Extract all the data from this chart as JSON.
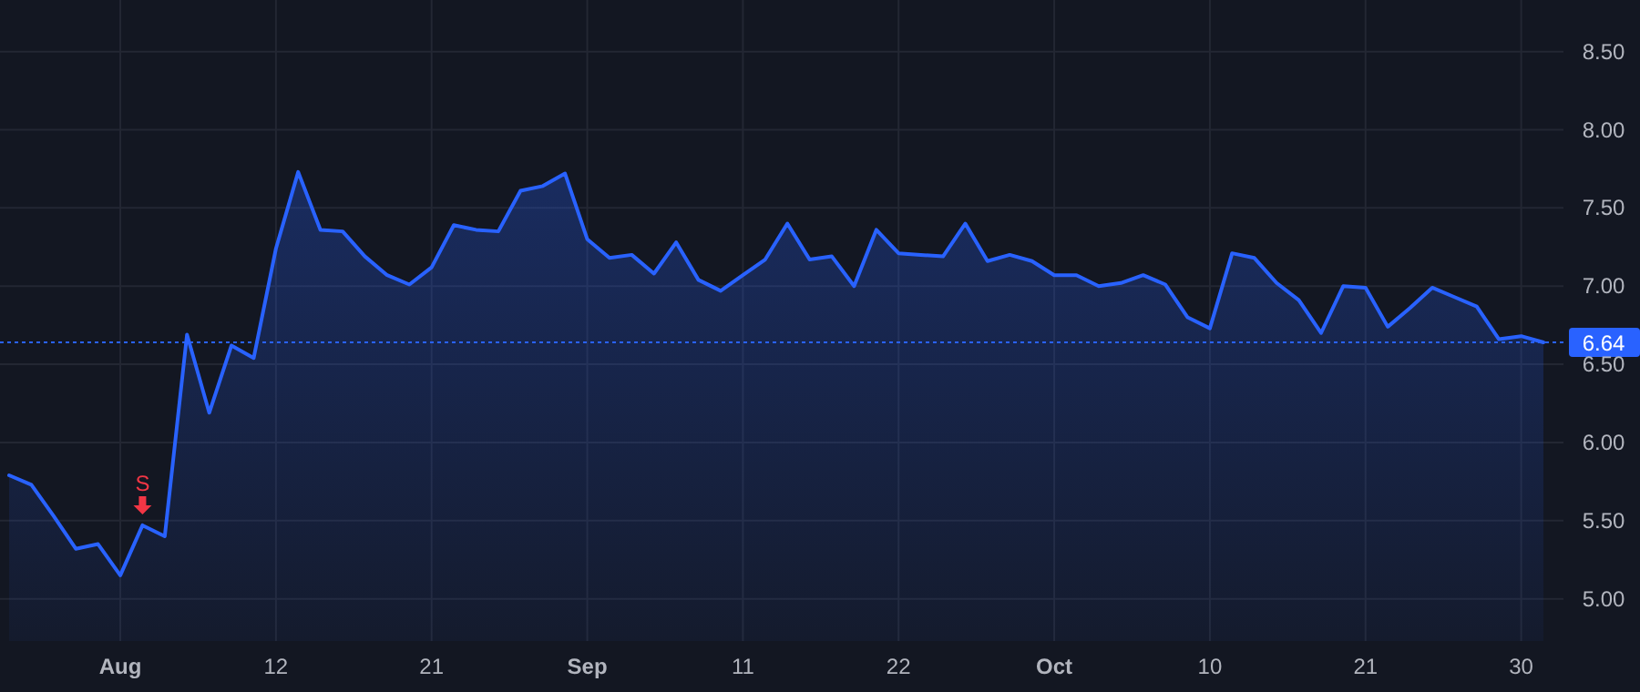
{
  "chart_data": {
    "type": "area",
    "categories": [
      null,
      null,
      null,
      null,
      null,
      "Aug",
      null,
      null,
      null,
      null,
      null,
      null,
      "12",
      null,
      null,
      null,
      null,
      null,
      null,
      "21",
      null,
      null,
      null,
      null,
      null,
      null,
      "Sep",
      null,
      null,
      null,
      null,
      null,
      null,
      "11",
      null,
      null,
      null,
      null,
      null,
      null,
      "22",
      null,
      null,
      null,
      null,
      null,
      null,
      "Oct",
      null,
      null,
      null,
      null,
      null,
      null,
      "10",
      null,
      null,
      null,
      null,
      null,
      null,
      "21",
      null,
      null,
      null,
      null,
      null,
      null,
      "30",
      null
    ],
    "series": [
      {
        "color": "#2962ff",
        "values": [
          5.79,
          5.73,
          5.53,
          5.32,
          5.35,
          5.15,
          5.47,
          5.4,
          6.69,
          6.19,
          6.62,
          6.54,
          7.24,
          7.73,
          7.36,
          7.35,
          7.19,
          7.07,
          7.01,
          7.12,
          7.39,
          7.36,
          7.35,
          7.61,
          7.64,
          7.72,
          7.3,
          7.18,
          7.2,
          7.08,
          7.28,
          7.04,
          6.97,
          7.07,
          7.17,
          7.4,
          7.17,
          7.19,
          7.0,
          7.36,
          7.21,
          7.2,
          7.19,
          7.4,
          7.16,
          7.2,
          7.16,
          7.07,
          7.07,
          7.0,
          7.02,
          7.07,
          7.01,
          6.8,
          6.73,
          7.21,
          7.18,
          7.02,
          6.91,
          6.7,
          7.0,
          6.99,
          6.74,
          6.86,
          6.99,
          6.93,
          6.87,
          6.66,
          6.68,
          6.64
        ]
      }
    ],
    "ylim": [
      4.73,
      8.83
    ],
    "yticks": [
      {
        "value": 5,
        "label": "5.00"
      },
      {
        "value": 5.5,
        "label": "5.50"
      },
      {
        "value": 6,
        "label": "6.00"
      },
      {
        "value": 6.5,
        "label": "6.50"
      },
      {
        "value": 7,
        "label": "7.00"
      },
      {
        "value": 7.5,
        "label": "7.50"
      },
      {
        "value": 8,
        "label": "8.00"
      },
      {
        "value": 8.5,
        "label": "8.50"
      }
    ],
    "grid": true,
    "ref_lines": [
      {
        "axis": "y",
        "value": 6.64,
        "label": "6.64",
        "color": "#2962ff",
        "line_style": "dotted"
      }
    ],
    "annotations": [
      {
        "text": "S",
        "y": 5.47
      }
    ]
  }
}
